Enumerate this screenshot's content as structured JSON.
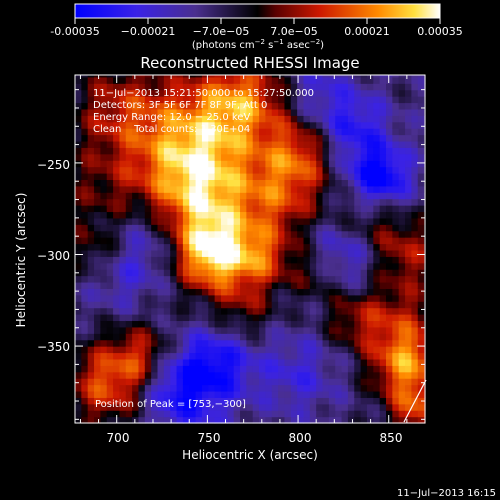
{
  "colorbar": {
    "ticks": [
      "-0.00035",
      "−0.00021",
      "−7.0e−05",
      "7.0e−05",
      "0.00021",
      "0.00035"
    ],
    "units_prefix": "(photons cm",
    "units_exp1": "−2",
    "units_mid": " s",
    "units_exp2": "−1",
    "units_mid2": " asec",
    "units_exp3": "−2",
    "units_suffix": ")",
    "range": [
      -0.00035,
      0.00035
    ]
  },
  "chart_data": {
    "type": "heatmap",
    "title": "Reconstructed RHESSI Image",
    "xlabel": "Heliocentric X (arcsec)",
    "ylabel": "Heliocentric Y (arcsec)",
    "x_ticks": [
      "700",
      "750",
      "800",
      "850"
    ],
    "y_ticks": [
      "−250",
      "−300",
      "−350"
    ],
    "x_tick_values": [
      700,
      750,
      800,
      850
    ],
    "y_tick_values": [
      -250,
      -300,
      -350
    ],
    "xlim": [
      677,
      870
    ],
    "ylim": [
      -392,
      -202
    ],
    "peak": {
      "x": 753,
      "y": -300
    },
    "annotations": [
      "11−Jul−2013 15:21:50.000 to 15:27:50.000",
      "Detectors: 3F 5F 6F 7F 8F 9F, Att 0",
      "Energy Range: 12.0 − 25.0 keV",
      "Clean    Total counts: 1.30E+04"
    ],
    "peak_label": "Position of Peak = [753,−300]",
    "blobs": [
      {
        "x": 753,
        "y": -300,
        "amp": 0.00035,
        "r": 14
      },
      {
        "x": 745,
        "y": -272,
        "amp": 0.00028,
        "r": 22
      },
      {
        "x": 742,
        "y": -238,
        "amp": 0.0003,
        "r": 24
      },
      {
        "x": 770,
        "y": -215,
        "amp": 0.00024,
        "r": 16
      },
      {
        "x": 800,
        "y": -245,
        "amp": 0.00022,
        "r": 14
      },
      {
        "x": 790,
        "y": -270,
        "amp": 0.00018,
        "r": 16
      },
      {
        "x": 780,
        "y": -302,
        "amp": 0.0002,
        "r": 12
      },
      {
        "x": 700,
        "y": -220,
        "amp": 0.00016,
        "r": 18
      },
      {
        "x": 690,
        "y": -265,
        "amp": 0.0001,
        "r": 18
      },
      {
        "x": 840,
        "y": -280,
        "amp": 0.00012,
        "r": 14
      },
      {
        "x": 860,
        "y": -300,
        "amp": 0.00016,
        "r": 14
      },
      {
        "x": 855,
        "y": -335,
        "amp": 0.00014,
        "r": 14
      },
      {
        "x": 860,
        "y": -360,
        "amp": 0.0003,
        "r": 14
      },
      {
        "x": 865,
        "y": -385,
        "amp": 0.0002,
        "r": 10
      },
      {
        "x": 695,
        "y": -370,
        "amp": 0.00025,
        "r": 16
      },
      {
        "x": 715,
        "y": -355,
        "amp": 0.00018,
        "r": 12
      },
      {
        "x": 770,
        "y": -330,
        "amp": 0.00012,
        "r": 12
      },
      {
        "x": 830,
        "y": -335,
        "amp": 0.00014,
        "r": 12
      },
      {
        "x": 690,
        "y": -300,
        "amp": 0.00014,
        "r": 12
      },
      {
        "x": 810,
        "y": -310,
        "amp": 0.00012,
        "r": 10
      },
      {
        "x": 720,
        "y": -290,
        "amp": -0.00015,
        "r": 16
      },
      {
        "x": 700,
        "y": -310,
        "amp": -0.00012,
        "r": 14
      },
      {
        "x": 845,
        "y": -258,
        "amp": -0.0003,
        "r": 12
      },
      {
        "x": 830,
        "y": -230,
        "amp": -0.00018,
        "r": 14
      },
      {
        "x": 755,
        "y": -360,
        "amp": -0.00022,
        "r": 14
      },
      {
        "x": 730,
        "y": -370,
        "amp": -0.00016,
        "r": 14
      },
      {
        "x": 800,
        "y": -365,
        "amp": -0.00012,
        "r": 16
      },
      {
        "x": 825,
        "y": -300,
        "amp": -0.00016,
        "r": 14
      },
      {
        "x": 740,
        "y": -385,
        "amp": -0.0001,
        "r": 16
      },
      {
        "x": 810,
        "y": -210,
        "amp": -0.0001,
        "r": 12
      }
    ]
  },
  "timestamp": "11−Jul−2013 16:15"
}
